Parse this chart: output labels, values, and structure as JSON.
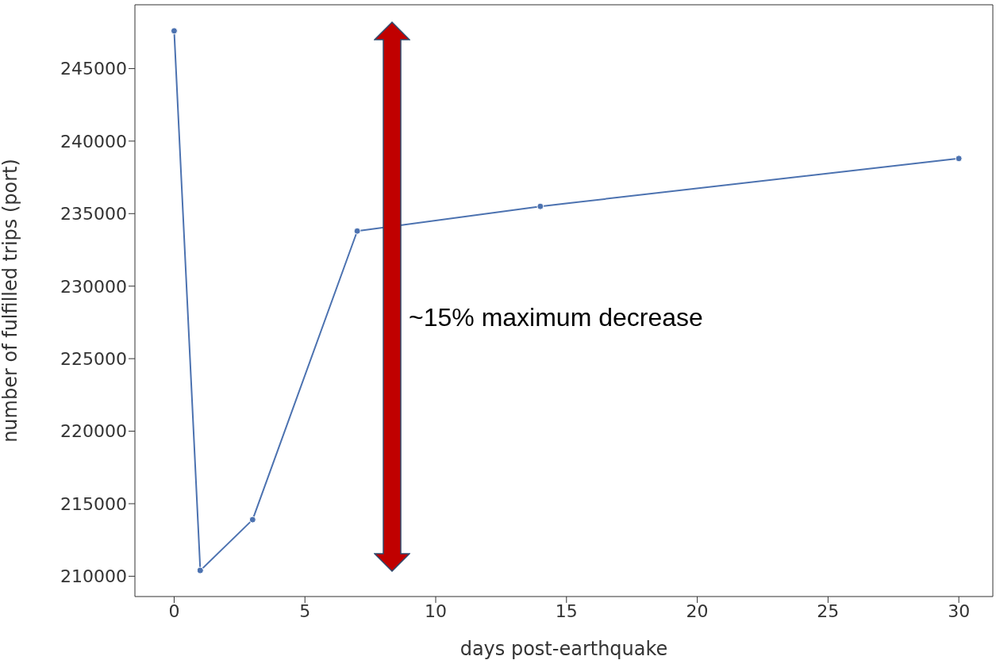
{
  "chart_data": {
    "type": "line",
    "xlabel": "days post-earthquake",
    "ylabel": "number of fulfilled trips (port)",
    "x": [
      0,
      1,
      3,
      7,
      14,
      30
    ],
    "series": [
      {
        "color": "#4c72b0",
        "values": [
          247600,
          210400,
          213900,
          233800,
          235500,
          238800
        ]
      }
    ],
    "xlim": [
      -1.5,
      31.3
    ],
    "xticks": [
      0,
      5,
      10,
      15,
      20,
      25,
      30
    ],
    "ylim": [
      208600,
      249400
    ],
    "yticks": [
      210000,
      215000,
      220000,
      225000,
      230000,
      235000,
      240000,
      245000
    ],
    "grid": false,
    "marker": "circle",
    "line_style": "solid",
    "annotations": [
      "~15% maximum decrease"
    ]
  }
}
